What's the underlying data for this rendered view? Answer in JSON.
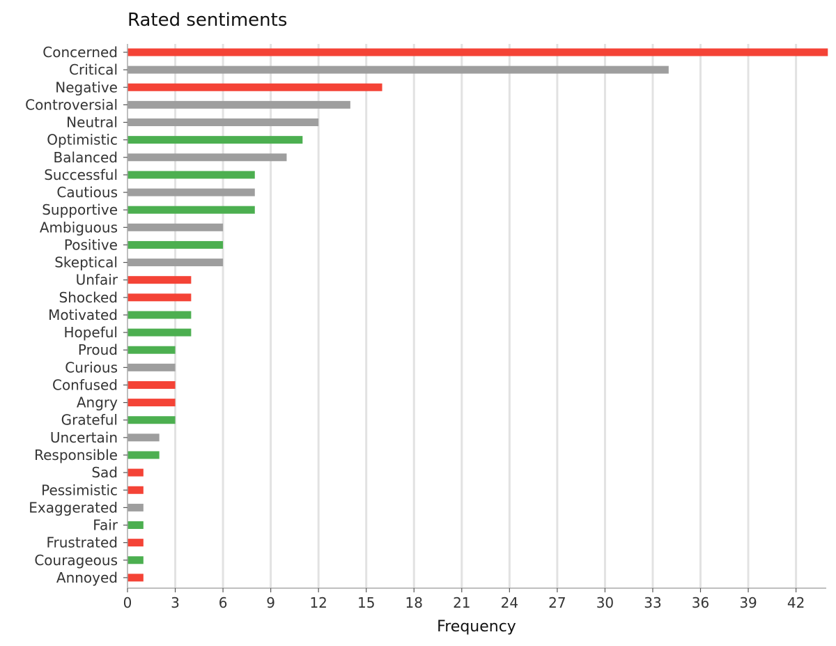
{
  "chart_data": {
    "type": "bar",
    "orientation": "horizontal",
    "title": "Rated sentiments",
    "xlabel": "Frequency",
    "ylabel": "",
    "xlim": [
      0,
      43.9
    ],
    "xticks": [
      0,
      3,
      6,
      9,
      12,
      15,
      18,
      21,
      24,
      27,
      30,
      33,
      36,
      39,
      42
    ],
    "grid": "vertical",
    "legend": "none",
    "colors": {
      "negative": "#f44336",
      "neutral": "#9e9e9e",
      "positive": "#4caf50"
    },
    "categories": [
      "Concerned",
      "Critical",
      "Negative",
      "Controversial",
      "Neutral",
      "Optimistic",
      "Balanced",
      "Successful",
      "Cautious",
      "Supportive",
      "Ambiguous",
      "Positive",
      "Skeptical",
      "Unfair",
      "Shocked",
      "Motivated",
      "Hopeful",
      "Proud",
      "Curious",
      "Confused",
      "Angry",
      "Grateful",
      "Uncertain",
      "Responsible",
      "Sad",
      "Pessimistic",
      "Exaggerated",
      "Fair",
      "Frustrated",
      "Courageous",
      "Annoyed"
    ],
    "values": [
      44,
      34,
      16,
      14,
      12,
      11,
      10,
      8,
      8,
      8,
      6,
      6,
      6,
      4,
      4,
      4,
      4,
      3,
      3,
      3,
      3,
      3,
      2,
      2,
      1,
      1,
      1,
      1,
      1,
      1,
      1
    ],
    "sentiment": [
      "negative",
      "neutral",
      "negative",
      "neutral",
      "neutral",
      "positive",
      "neutral",
      "positive",
      "neutral",
      "positive",
      "neutral",
      "positive",
      "neutral",
      "negative",
      "negative",
      "positive",
      "positive",
      "positive",
      "neutral",
      "negative",
      "negative",
      "positive",
      "neutral",
      "positive",
      "negative",
      "negative",
      "neutral",
      "positive",
      "negative",
      "positive",
      "negative"
    ]
  }
}
